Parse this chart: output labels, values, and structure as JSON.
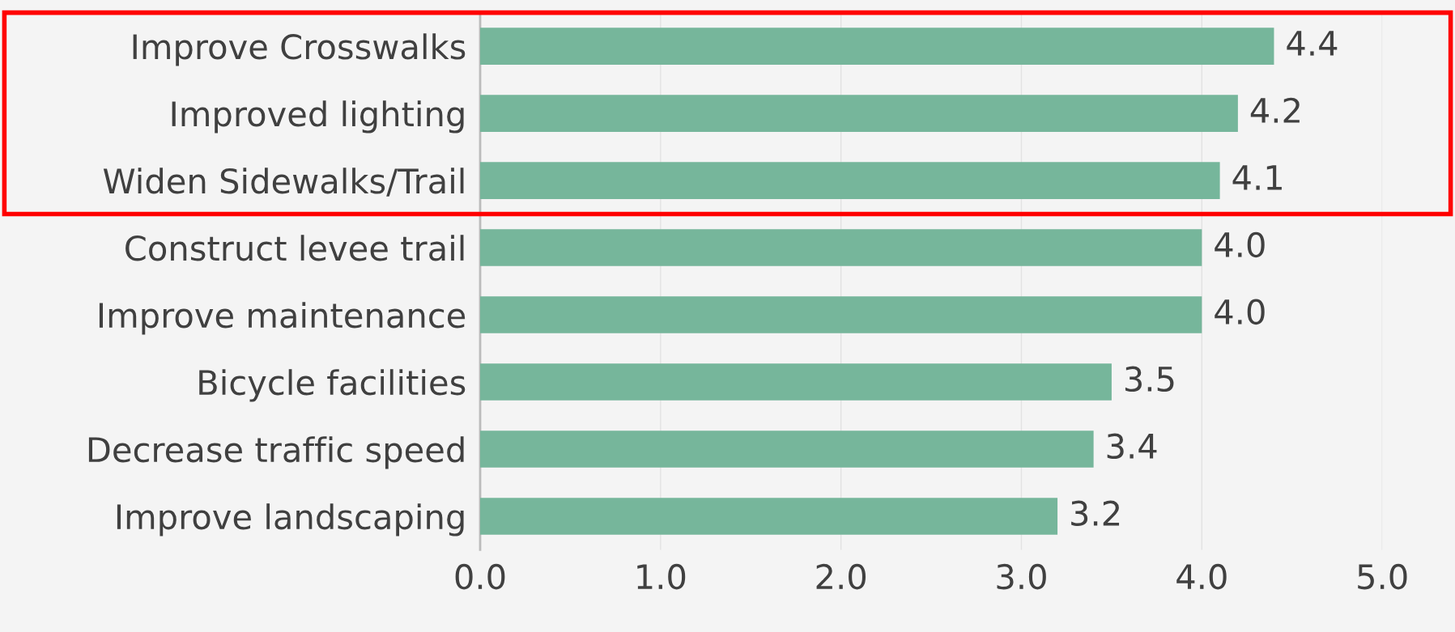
{
  "chart_data": {
    "type": "bar",
    "orientation": "horizontal",
    "categories": [
      "Improve Crosswalks",
      "Improved lighting",
      "Widen Sidewalks/Trail",
      "Construct levee trail",
      "Improve maintenance",
      "Bicycle facilities",
      "Decrease traffic speed",
      "Improve landscaping"
    ],
    "values": [
      4.4,
      4.2,
      4.1,
      4.0,
      4.0,
      3.5,
      3.4,
      3.2
    ],
    "color": "#76b69b",
    "xlim": [
      0,
      5
    ],
    "xticks": [
      {
        "value": 0,
        "label": "0.0"
      },
      {
        "value": 1,
        "label": "1.0"
      },
      {
        "value": 2,
        "label": "2.0"
      },
      {
        "value": 3,
        "label": "3.0"
      },
      {
        "value": 4,
        "label": "4.0"
      },
      {
        "value": 5,
        "label": "5.0"
      }
    ],
    "value_labels": [
      "4.4",
      "4.2",
      "4.1",
      "4.0",
      "4.0",
      "3.5",
      "3.4",
      "3.2"
    ],
    "grid": "x"
  }
}
